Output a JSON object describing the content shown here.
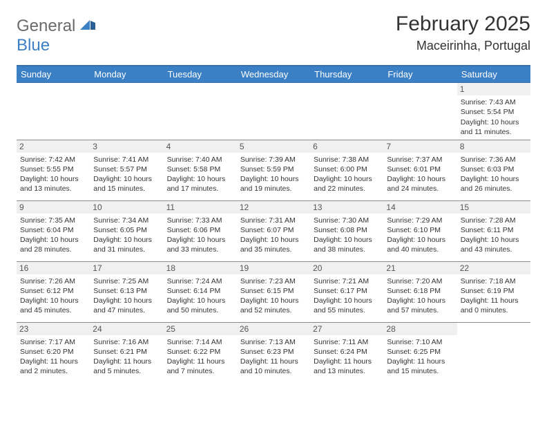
{
  "logo": {
    "word1": "General",
    "word2": "Blue"
  },
  "title": "February 2025",
  "location": "Maceirinha, Portugal",
  "header_bg": "#3b7fc4",
  "daynum_bg": "#f0f0f0",
  "weekdays": [
    "Sunday",
    "Monday",
    "Tuesday",
    "Wednesday",
    "Thursday",
    "Friday",
    "Saturday"
  ],
  "weeks": [
    [
      null,
      null,
      null,
      null,
      null,
      null,
      {
        "n": "1",
        "sr": "Sunrise: 7:43 AM",
        "ss": "Sunset: 5:54 PM",
        "d1": "Daylight: 10 hours",
        "d2": "and 11 minutes."
      }
    ],
    [
      {
        "n": "2",
        "sr": "Sunrise: 7:42 AM",
        "ss": "Sunset: 5:55 PM",
        "d1": "Daylight: 10 hours",
        "d2": "and 13 minutes."
      },
      {
        "n": "3",
        "sr": "Sunrise: 7:41 AM",
        "ss": "Sunset: 5:57 PM",
        "d1": "Daylight: 10 hours",
        "d2": "and 15 minutes."
      },
      {
        "n": "4",
        "sr": "Sunrise: 7:40 AM",
        "ss": "Sunset: 5:58 PM",
        "d1": "Daylight: 10 hours",
        "d2": "and 17 minutes."
      },
      {
        "n": "5",
        "sr": "Sunrise: 7:39 AM",
        "ss": "Sunset: 5:59 PM",
        "d1": "Daylight: 10 hours",
        "d2": "and 19 minutes."
      },
      {
        "n": "6",
        "sr": "Sunrise: 7:38 AM",
        "ss": "Sunset: 6:00 PM",
        "d1": "Daylight: 10 hours",
        "d2": "and 22 minutes."
      },
      {
        "n": "7",
        "sr": "Sunrise: 7:37 AM",
        "ss": "Sunset: 6:01 PM",
        "d1": "Daylight: 10 hours",
        "d2": "and 24 minutes."
      },
      {
        "n": "8",
        "sr": "Sunrise: 7:36 AM",
        "ss": "Sunset: 6:03 PM",
        "d1": "Daylight: 10 hours",
        "d2": "and 26 minutes."
      }
    ],
    [
      {
        "n": "9",
        "sr": "Sunrise: 7:35 AM",
        "ss": "Sunset: 6:04 PM",
        "d1": "Daylight: 10 hours",
        "d2": "and 28 minutes."
      },
      {
        "n": "10",
        "sr": "Sunrise: 7:34 AM",
        "ss": "Sunset: 6:05 PM",
        "d1": "Daylight: 10 hours",
        "d2": "and 31 minutes."
      },
      {
        "n": "11",
        "sr": "Sunrise: 7:33 AM",
        "ss": "Sunset: 6:06 PM",
        "d1": "Daylight: 10 hours",
        "d2": "and 33 minutes."
      },
      {
        "n": "12",
        "sr": "Sunrise: 7:31 AM",
        "ss": "Sunset: 6:07 PM",
        "d1": "Daylight: 10 hours",
        "d2": "and 35 minutes."
      },
      {
        "n": "13",
        "sr": "Sunrise: 7:30 AM",
        "ss": "Sunset: 6:08 PM",
        "d1": "Daylight: 10 hours",
        "d2": "and 38 minutes."
      },
      {
        "n": "14",
        "sr": "Sunrise: 7:29 AM",
        "ss": "Sunset: 6:10 PM",
        "d1": "Daylight: 10 hours",
        "d2": "and 40 minutes."
      },
      {
        "n": "15",
        "sr": "Sunrise: 7:28 AM",
        "ss": "Sunset: 6:11 PM",
        "d1": "Daylight: 10 hours",
        "d2": "and 43 minutes."
      }
    ],
    [
      {
        "n": "16",
        "sr": "Sunrise: 7:26 AM",
        "ss": "Sunset: 6:12 PM",
        "d1": "Daylight: 10 hours",
        "d2": "and 45 minutes."
      },
      {
        "n": "17",
        "sr": "Sunrise: 7:25 AM",
        "ss": "Sunset: 6:13 PM",
        "d1": "Daylight: 10 hours",
        "d2": "and 47 minutes."
      },
      {
        "n": "18",
        "sr": "Sunrise: 7:24 AM",
        "ss": "Sunset: 6:14 PM",
        "d1": "Daylight: 10 hours",
        "d2": "and 50 minutes."
      },
      {
        "n": "19",
        "sr": "Sunrise: 7:23 AM",
        "ss": "Sunset: 6:15 PM",
        "d1": "Daylight: 10 hours",
        "d2": "and 52 minutes."
      },
      {
        "n": "20",
        "sr": "Sunrise: 7:21 AM",
        "ss": "Sunset: 6:17 PM",
        "d1": "Daylight: 10 hours",
        "d2": "and 55 minutes."
      },
      {
        "n": "21",
        "sr": "Sunrise: 7:20 AM",
        "ss": "Sunset: 6:18 PM",
        "d1": "Daylight: 10 hours",
        "d2": "and 57 minutes."
      },
      {
        "n": "22",
        "sr": "Sunrise: 7:18 AM",
        "ss": "Sunset: 6:19 PM",
        "d1": "Daylight: 11 hours",
        "d2": "and 0 minutes."
      }
    ],
    [
      {
        "n": "23",
        "sr": "Sunrise: 7:17 AM",
        "ss": "Sunset: 6:20 PM",
        "d1": "Daylight: 11 hours",
        "d2": "and 2 minutes."
      },
      {
        "n": "24",
        "sr": "Sunrise: 7:16 AM",
        "ss": "Sunset: 6:21 PM",
        "d1": "Daylight: 11 hours",
        "d2": "and 5 minutes."
      },
      {
        "n": "25",
        "sr": "Sunrise: 7:14 AM",
        "ss": "Sunset: 6:22 PM",
        "d1": "Daylight: 11 hours",
        "d2": "and 7 minutes."
      },
      {
        "n": "26",
        "sr": "Sunrise: 7:13 AM",
        "ss": "Sunset: 6:23 PM",
        "d1": "Daylight: 11 hours",
        "d2": "and 10 minutes."
      },
      {
        "n": "27",
        "sr": "Sunrise: 7:11 AM",
        "ss": "Sunset: 6:24 PM",
        "d1": "Daylight: 11 hours",
        "d2": "and 13 minutes."
      },
      {
        "n": "28",
        "sr": "Sunrise: 7:10 AM",
        "ss": "Sunset: 6:25 PM",
        "d1": "Daylight: 11 hours",
        "d2": "and 15 minutes."
      },
      null
    ]
  ]
}
